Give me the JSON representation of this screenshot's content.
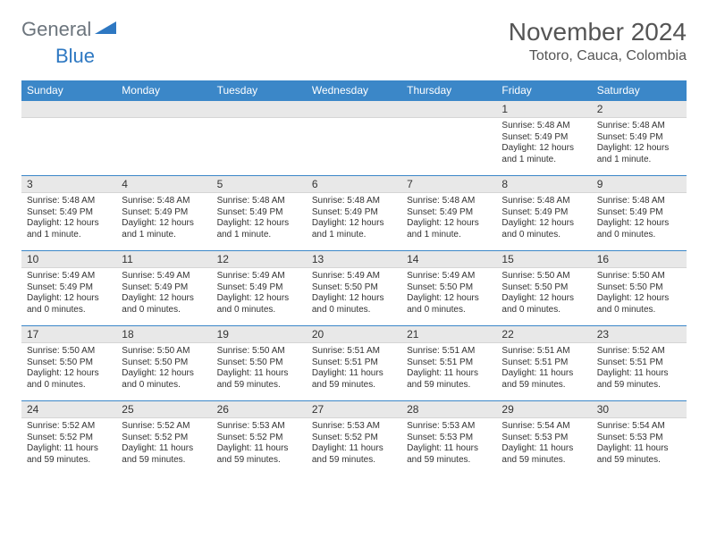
{
  "logo": {
    "word1": "General",
    "word2": "Blue",
    "color1": "#6c757d",
    "color2": "#2e78c2"
  },
  "title": "November 2024",
  "location": "Totoro, Cauca, Colombia",
  "header_bg": "#3b87c8",
  "days_of_week": [
    "Sunday",
    "Monday",
    "Tuesday",
    "Wednesday",
    "Thursday",
    "Friday",
    "Saturday"
  ],
  "weeks": [
    [
      null,
      null,
      null,
      null,
      null,
      {
        "n": "1",
        "sr": "5:48 AM",
        "ss": "5:49 PM",
        "dl": "12 hours and 1 minute."
      },
      {
        "n": "2",
        "sr": "5:48 AM",
        "ss": "5:49 PM",
        "dl": "12 hours and 1 minute."
      }
    ],
    [
      {
        "n": "3",
        "sr": "5:48 AM",
        "ss": "5:49 PM",
        "dl": "12 hours and 1 minute."
      },
      {
        "n": "4",
        "sr": "5:48 AM",
        "ss": "5:49 PM",
        "dl": "12 hours and 1 minute."
      },
      {
        "n": "5",
        "sr": "5:48 AM",
        "ss": "5:49 PM",
        "dl": "12 hours and 1 minute."
      },
      {
        "n": "6",
        "sr": "5:48 AM",
        "ss": "5:49 PM",
        "dl": "12 hours and 1 minute."
      },
      {
        "n": "7",
        "sr": "5:48 AM",
        "ss": "5:49 PM",
        "dl": "12 hours and 1 minute."
      },
      {
        "n": "8",
        "sr": "5:48 AM",
        "ss": "5:49 PM",
        "dl": "12 hours and 0 minutes."
      },
      {
        "n": "9",
        "sr": "5:48 AM",
        "ss": "5:49 PM",
        "dl": "12 hours and 0 minutes."
      }
    ],
    [
      {
        "n": "10",
        "sr": "5:49 AM",
        "ss": "5:49 PM",
        "dl": "12 hours and 0 minutes."
      },
      {
        "n": "11",
        "sr": "5:49 AM",
        "ss": "5:49 PM",
        "dl": "12 hours and 0 minutes."
      },
      {
        "n": "12",
        "sr": "5:49 AM",
        "ss": "5:49 PM",
        "dl": "12 hours and 0 minutes."
      },
      {
        "n": "13",
        "sr": "5:49 AM",
        "ss": "5:50 PM",
        "dl": "12 hours and 0 minutes."
      },
      {
        "n": "14",
        "sr": "5:49 AM",
        "ss": "5:50 PM",
        "dl": "12 hours and 0 minutes."
      },
      {
        "n": "15",
        "sr": "5:50 AM",
        "ss": "5:50 PM",
        "dl": "12 hours and 0 minutes."
      },
      {
        "n": "16",
        "sr": "5:50 AM",
        "ss": "5:50 PM",
        "dl": "12 hours and 0 minutes."
      }
    ],
    [
      {
        "n": "17",
        "sr": "5:50 AM",
        "ss": "5:50 PM",
        "dl": "12 hours and 0 minutes."
      },
      {
        "n": "18",
        "sr": "5:50 AM",
        "ss": "5:50 PM",
        "dl": "12 hours and 0 minutes."
      },
      {
        "n": "19",
        "sr": "5:50 AM",
        "ss": "5:50 PM",
        "dl": "11 hours and 59 minutes."
      },
      {
        "n": "20",
        "sr": "5:51 AM",
        "ss": "5:51 PM",
        "dl": "11 hours and 59 minutes."
      },
      {
        "n": "21",
        "sr": "5:51 AM",
        "ss": "5:51 PM",
        "dl": "11 hours and 59 minutes."
      },
      {
        "n": "22",
        "sr": "5:51 AM",
        "ss": "5:51 PM",
        "dl": "11 hours and 59 minutes."
      },
      {
        "n": "23",
        "sr": "5:52 AM",
        "ss": "5:51 PM",
        "dl": "11 hours and 59 minutes."
      }
    ],
    [
      {
        "n": "24",
        "sr": "5:52 AM",
        "ss": "5:52 PM",
        "dl": "11 hours and 59 minutes."
      },
      {
        "n": "25",
        "sr": "5:52 AM",
        "ss": "5:52 PM",
        "dl": "11 hours and 59 minutes."
      },
      {
        "n": "26",
        "sr": "5:53 AM",
        "ss": "5:52 PM",
        "dl": "11 hours and 59 minutes."
      },
      {
        "n": "27",
        "sr": "5:53 AM",
        "ss": "5:52 PM",
        "dl": "11 hours and 59 minutes."
      },
      {
        "n": "28",
        "sr": "5:53 AM",
        "ss": "5:53 PM",
        "dl": "11 hours and 59 minutes."
      },
      {
        "n": "29",
        "sr": "5:54 AM",
        "ss": "5:53 PM",
        "dl": "11 hours and 59 minutes."
      },
      {
        "n": "30",
        "sr": "5:54 AM",
        "ss": "5:53 PM",
        "dl": "11 hours and 59 minutes."
      }
    ]
  ],
  "labels": {
    "sunrise": "Sunrise:",
    "sunset": "Sunset:",
    "daylight": "Daylight:"
  }
}
